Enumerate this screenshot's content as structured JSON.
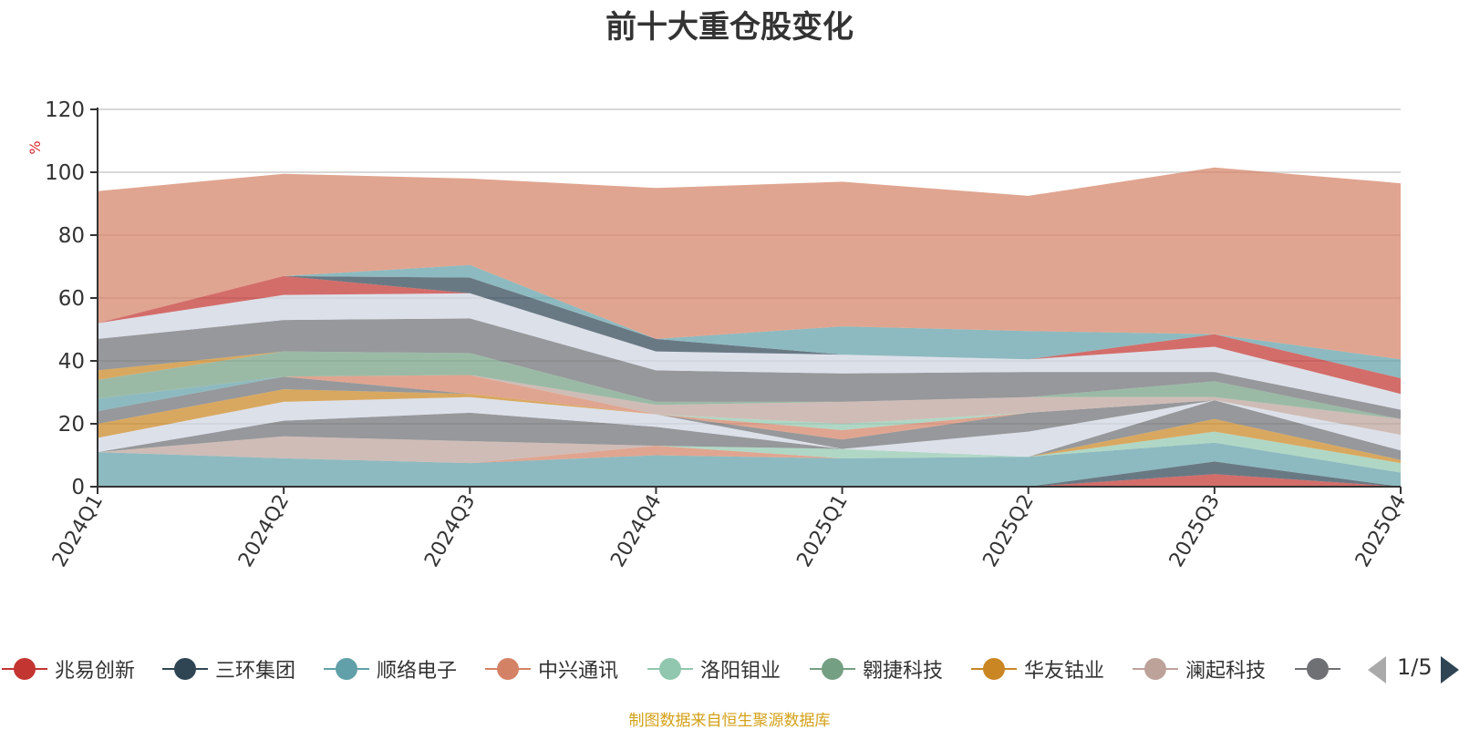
{
  "chart_data": {
    "type": "area",
    "title": "前十大重仓股变化",
    "ylabel": "%",
    "ylim": [
      0,
      120
    ],
    "yticks": [
      0,
      20,
      40,
      60,
      80,
      100,
      120
    ],
    "grid": true,
    "legend_position": "bottom",
    "categories": [
      "2024Q1",
      "2024Q2",
      "2024Q3",
      "2024Q4",
      "2025Q1",
      "2025Q2",
      "2025Q3",
      "2025Q4"
    ],
    "series": [
      {
        "name": "兆易创新",
        "color": "#c23531",
        "values": [
          0,
          0,
          0,
          0,
          0,
          0,
          4,
          0
        ]
      },
      {
        "name": "三环集团",
        "color": "#2f4554",
        "values": [
          0,
          0,
          0,
          0,
          0,
          0,
          4,
          0
        ]
      },
      {
        "name": "顺络电子",
        "color": "#61a0a8",
        "values": [
          11,
          9,
          7.5,
          10,
          9,
          9.5,
          6,
          4.5
        ]
      },
      {
        "name": "中兴通讯",
        "color": "#d48265",
        "values": [
          0,
          0,
          0,
          3,
          0,
          0,
          0,
          0
        ]
      },
      {
        "name": "洛阳钼业",
        "color": "#91c7ae",
        "values": [
          0,
          0,
          0,
          0,
          3,
          0,
          3.5,
          3
        ]
      },
      {
        "name": "翱捷科技",
        "color": "#749f83",
        "values": [
          0,
          0,
          0,
          0,
          0,
          0,
          0,
          0
        ]
      },
      {
        "name": "华友钴业",
        "color": "#ca8622",
        "values": [
          0,
          0,
          0,
          0,
          0,
          0,
          4,
          1
        ]
      },
      {
        "name": "澜起科技",
        "color": "#bda29a",
        "values": [
          0,
          7,
          7,
          0,
          0,
          0,
          0,
          0
        ]
      },
      {
        "name": "",
        "color": "#6e7074",
        "values": [
          0,
          5,
          9,
          6,
          0,
          0,
          6,
          3
        ]
      },
      {
        "name": "",
        "color": "#cfd4e0",
        "values": [
          4.5,
          6,
          5,
          4,
          0,
          8,
          0,
          5
        ]
      },
      {
        "name": "",
        "color": "#c23531",
        "values": [
          0,
          0,
          0,
          0,
          0,
          0,
          0,
          0
        ]
      },
      {
        "name": "",
        "color": "#61a0a8",
        "values": [
          0,
          0,
          0,
          0,
          0,
          0,
          0,
          0
        ]
      },
      {
        "name": "",
        "color": "#ca8622",
        "values": [
          4.5,
          4,
          1,
          0,
          0,
          0,
          0,
          0
        ]
      },
      {
        "name": "",
        "color": "#6e7074",
        "values": [
          4,
          4,
          0,
          0,
          3,
          6,
          0,
          0
        ]
      },
      {
        "name": "",
        "color": "#d48265",
        "values": [
          0,
          0,
          6,
          0,
          3,
          0,
          0,
          0
        ]
      },
      {
        "name": "",
        "color": "#61a0a8",
        "values": [
          4,
          0,
          0,
          0,
          0,
          0,
          0,
          0
        ]
      },
      {
        "name": "",
        "color": "#91c7ae",
        "values": [
          0,
          0,
          0,
          0,
          2,
          0,
          0,
          0
        ]
      },
      {
        "name": "",
        "color": "#bda29a",
        "values": [
          0,
          0,
          0,
          3,
          7,
          5,
          1,
          5
        ]
      },
      {
        "name": "",
        "color": "#c23531",
        "values": [
          0,
          0,
          0,
          0,
          0,
          0,
          0,
          0
        ]
      },
      {
        "name": "",
        "color": "#749f83",
        "values": [
          6,
          8,
          7,
          1,
          0,
          0,
          5,
          0
        ]
      },
      {
        "name": "",
        "color": "#ca8622",
        "values": [
          3,
          0,
          0,
          0,
          0,
          0,
          0,
          0
        ]
      },
      {
        "name": "",
        "color": "#6e7074",
        "values": [
          10,
          10,
          11,
          10,
          9,
          8,
          3,
          3
        ]
      },
      {
        "name": "",
        "color": "#cfd4e0",
        "values": [
          5,
          8,
          8,
          6,
          6,
          4,
          8,
          5
        ]
      },
      {
        "name": "",
        "color": "#c23531",
        "values": [
          0,
          6,
          0,
          0,
          0,
          0,
          4,
          5
        ]
      },
      {
        "name": "",
        "color": "#2f4554",
        "values": [
          0,
          0,
          5,
          4,
          0,
          0,
          0,
          0
        ]
      },
      {
        "name": "",
        "color": "#61a0a8",
        "values": [
          0,
          0,
          4,
          0,
          9,
          9,
          0,
          6
        ]
      },
      {
        "name": "",
        "color": "#d48265",
        "values": [
          42,
          32.5,
          27.5,
          48,
          46,
          43,
          53,
          56
        ]
      }
    ]
  },
  "legend": {
    "items": [
      {
        "label": "兆易创新",
        "color": "#c23531"
      },
      {
        "label": "三环集团",
        "color": "#2f4554"
      },
      {
        "label": "顺络电子",
        "color": "#61a0a8"
      },
      {
        "label": "中兴通讯",
        "color": "#d48265"
      },
      {
        "label": "洛阳钼业",
        "color": "#91c7ae"
      },
      {
        "label": "翱捷科技",
        "color": "#749f83"
      },
      {
        "label": "华友钴业",
        "color": "#ca8622"
      },
      {
        "label": "澜起科技",
        "color": "#bda29a"
      },
      {
        "label": "",
        "color": "#6e7074"
      }
    ],
    "page": "1/5"
  },
  "footer": {
    "source": "制图数据来自恒生聚源数据库"
  }
}
